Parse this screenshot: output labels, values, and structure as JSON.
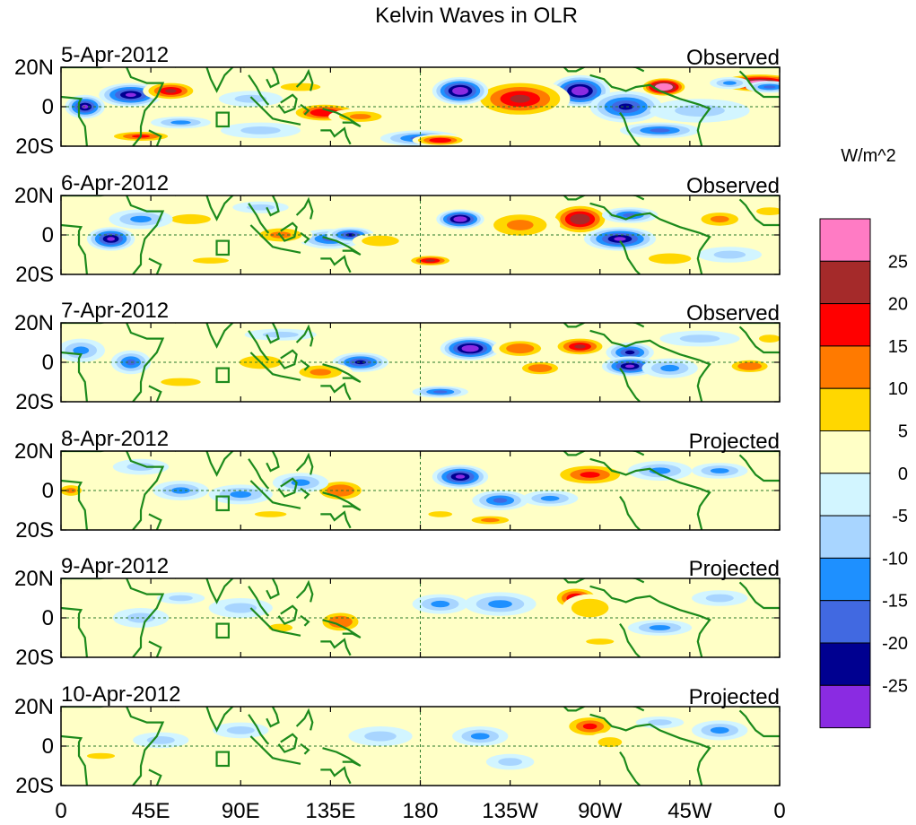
{
  "chart_data": {
    "type": "heatmap",
    "title": "Kelvin Waves in OLR",
    "x_ticks": [
      "0",
      "45E",
      "90E",
      "135E",
      "180",
      "135W",
      "90W",
      "45W",
      "0"
    ],
    "y_ticks": [
      "20N",
      "0",
      "20S"
    ],
    "xlim": [
      0,
      360
    ],
    "ylim": [
      -20,
      20
    ],
    "colorbar": {
      "unit": "W/m^2",
      "tick_labels": [
        "25",
        "20",
        "15",
        "10",
        "5",
        "0",
        "-5",
        "-10",
        "-15",
        "-20",
        "-25"
      ],
      "colors": [
        "#ff7bc4",
        "#a52a2a",
        "#ff0000",
        "#ff7a00",
        "#ffd700",
        "#ffffc6",
        "#d2f5ff",
        "#a8d5ff",
        "#1e90ff",
        "#4169e1",
        "#000090",
        "#8a2be2"
      ]
    },
    "panels": [
      {
        "date": "5-Apr-2012",
        "label": "Observed",
        "blobs": [
          [
            350,
            12,
            22,
            5,
            32
          ],
          [
            302,
            10,
            12,
            5,
            38
          ],
          [
            260,
            8,
            15,
            8,
            -30
          ],
          [
            230,
            4,
            25,
            10,
            22
          ],
          [
            200,
            8,
            14,
            7,
            -32
          ],
          [
            180,
            -16,
            20,
            4,
            -18
          ],
          [
            190,
            -17,
            14,
            3,
            20
          ],
          [
            283,
            0,
            18,
            8,
            -22
          ],
          [
            300,
            -12,
            20,
            4,
            -18
          ],
          [
            132,
            -3,
            18,
            5,
            20
          ],
          [
            150,
            -5,
            16,
            4,
            12
          ],
          [
            60,
            -8,
            15,
            3,
            -10
          ],
          [
            12,
            0,
            10,
            6,
            -28
          ],
          [
            35,
            6,
            16,
            6,
            -25
          ],
          [
            55,
            8,
            14,
            5,
            22
          ],
          [
            40,
            -15,
            18,
            3,
            16
          ],
          [
            335,
            12,
            10,
            3,
            -12
          ],
          [
            355,
            10,
            12,
            3,
            -15
          ],
          [
            120,
            10,
            20,
            4,
            8
          ],
          [
            95,
            4,
            16,
            4,
            -5
          ],
          [
            320,
            -2,
            25,
            6,
            -5
          ],
          [
            100,
            -12,
            20,
            4,
            -6
          ]
        ]
      },
      {
        "date": "6-Apr-2012",
        "label": "Observed",
        "blobs": [
          [
            260,
            8,
            15,
            8,
            25
          ],
          [
            230,
            5,
            20,
            8,
            12
          ],
          [
            200,
            8,
            12,
            5,
            -32
          ],
          [
            280,
            -2,
            18,
            6,
            -28
          ],
          [
            285,
            10,
            14,
            4,
            -15
          ],
          [
            185,
            -13,
            12,
            3,
            22
          ],
          [
            135,
            -2,
            16,
            5,
            -18
          ],
          [
            145,
            0,
            12,
            4,
            -22
          ],
          [
            160,
            -3,
            14,
            4,
            10
          ],
          [
            65,
            8,
            20,
            5,
            8
          ],
          [
            110,
            0,
            16,
            5,
            12
          ],
          [
            25,
            -2,
            12,
            6,
            -25
          ],
          [
            40,
            8,
            16,
            5,
            -12
          ],
          [
            330,
            8,
            14,
            5,
            12
          ],
          [
            305,
            -12,
            16,
            4,
            10
          ],
          [
            355,
            12,
            10,
            3,
            10
          ],
          [
            100,
            14,
            14,
            3,
            -8
          ],
          [
            75,
            -13,
            18,
            3,
            8
          ],
          [
            335,
            -10,
            16,
            4,
            -6
          ]
        ]
      },
      {
        "date": "7-Apr-2012",
        "label": "Observed",
        "blobs": [
          [
            205,
            7,
            15,
            6,
            -30
          ],
          [
            230,
            7,
            14,
            5,
            15
          ],
          [
            260,
            8,
            14,
            5,
            22
          ],
          [
            285,
            5,
            12,
            5,
            -22
          ],
          [
            285,
            -2,
            14,
            5,
            -25
          ],
          [
            305,
            -3,
            14,
            5,
            -12
          ],
          [
            240,
            -3,
            12,
            4,
            15
          ],
          [
            190,
            -15,
            14,
            3,
            -18
          ],
          [
            150,
            0,
            14,
            5,
            -22
          ],
          [
            130,
            -5,
            16,
            5,
            12
          ],
          [
            100,
            0,
            16,
            5,
            10
          ],
          [
            35,
            0,
            10,
            6,
            -18
          ],
          [
            10,
            6,
            12,
            6,
            -12
          ],
          [
            60,
            -10,
            20,
            4,
            8
          ],
          [
            345,
            -2,
            12,
            4,
            15
          ],
          [
            355,
            12,
            8,
            3,
            10
          ],
          [
            110,
            14,
            18,
            3,
            -6
          ],
          [
            320,
            12,
            20,
            4,
            -8
          ]
        ]
      },
      {
        "date": "8-Apr-2012",
        "label": "Projected",
        "blobs": [
          [
            200,
            7,
            14,
            6,
            -25
          ],
          [
            220,
            -5,
            14,
            5,
            -15
          ],
          [
            245,
            -4,
            14,
            4,
            -12
          ],
          [
            265,
            8,
            20,
            6,
            18
          ],
          [
            300,
            10,
            16,
            5,
            -12
          ],
          [
            330,
            10,
            14,
            4,
            -10
          ],
          [
            140,
            0,
            14,
            6,
            15
          ],
          [
            120,
            4,
            14,
            5,
            -12
          ],
          [
            90,
            -2,
            16,
            5,
            -12
          ],
          [
            60,
            0,
            14,
            5,
            -10
          ],
          [
            40,
            12,
            14,
            4,
            -8
          ],
          [
            5,
            0,
            8,
            4,
            12
          ],
          [
            190,
            -12,
            12,
            3,
            8
          ],
          [
            215,
            -15,
            14,
            3,
            12
          ],
          [
            105,
            -12,
            16,
            3,
            6
          ],
          [
            345,
            -2,
            10,
            4,
            5
          ]
        ]
      },
      {
        "date": "9-Apr-2012",
        "label": "Projected",
        "blobs": [
          [
            258,
            10,
            12,
            6,
            22
          ],
          [
            265,
            5,
            14,
            7,
            10
          ],
          [
            220,
            7,
            18,
            6,
            -12
          ],
          [
            190,
            7,
            14,
            5,
            -10
          ],
          [
            140,
            -2,
            12,
            6,
            15
          ],
          [
            110,
            -5,
            12,
            4,
            8
          ],
          [
            90,
            5,
            16,
            5,
            -8
          ],
          [
            40,
            0,
            14,
            5,
            -5
          ],
          [
            300,
            -5,
            16,
            4,
            -10
          ],
          [
            330,
            10,
            14,
            4,
            -8
          ],
          [
            270,
            -12,
            14,
            3,
            6
          ],
          [
            60,
            10,
            12,
            3,
            -5
          ]
        ]
      },
      {
        "date": "10-Apr-2012",
        "label": "Projected",
        "blobs": [
          [
            265,
            10,
            14,
            6,
            18
          ],
          [
            275,
            2,
            12,
            5,
            8
          ],
          [
            280,
            -10,
            12,
            4,
            5
          ],
          [
            210,
            5,
            14,
            5,
            -10
          ],
          [
            225,
            -8,
            12,
            4,
            -6
          ],
          [
            330,
            8,
            14,
            5,
            -10
          ],
          [
            160,
            5,
            16,
            5,
            -6
          ],
          [
            120,
            -5,
            16,
            4,
            5
          ],
          [
            90,
            8,
            14,
            4,
            -6
          ],
          [
            50,
            3,
            14,
            4,
            -5
          ],
          [
            20,
            -5,
            14,
            3,
            6
          ],
          [
            185,
            -14,
            14,
            3,
            5
          ],
          [
            300,
            12,
            12,
            3,
            -8
          ]
        ]
      }
    ]
  }
}
